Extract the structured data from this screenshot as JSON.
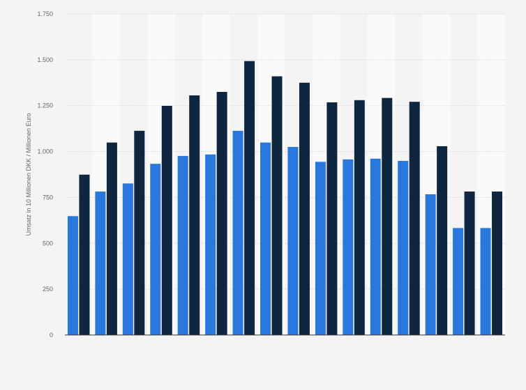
{
  "chart_data": {
    "type": "bar",
    "title": "",
    "xlabel": "",
    "ylabel": "Umsatz in 10 Millionen DKK / Millionen Euro",
    "ylim": [
      0,
      1750
    ],
    "yticks": [
      0,
      250,
      500,
      750,
      1000,
      1250,
      1500,
      1750
    ],
    "ytick_labels": [
      "0",
      "250",
      "500",
      "750",
      "1.000",
      "1.250",
      "1.500",
      "1.750"
    ],
    "grid": true,
    "legend": "none",
    "categories": [
      "",
      "",
      "",
      "",
      "",
      "",
      "",
      "",
      "",
      "",
      "",
      "",
      "",
      "",
      "",
      ""
    ],
    "series": [
      {
        "color": "#2a77de",
        "values": [
          648,
          782,
          826,
          933,
          976,
          984,
          1113,
          1049,
          1025,
          944,
          957,
          961,
          949,
          767,
          583,
          583
        ]
      },
      {
        "color": "#0f2640",
        "values": [
          874,
          1049,
          1113,
          1249,
          1306,
          1325,
          1493,
          1410,
          1375,
          1268,
          1280,
          1292,
          1271,
          1029,
          782,
          782
        ]
      }
    ],
    "colors": {
      "background": "#f4f4f4",
      "band": "#fafafa",
      "grid": "#d7d7d7",
      "axis": "#333333"
    }
  }
}
